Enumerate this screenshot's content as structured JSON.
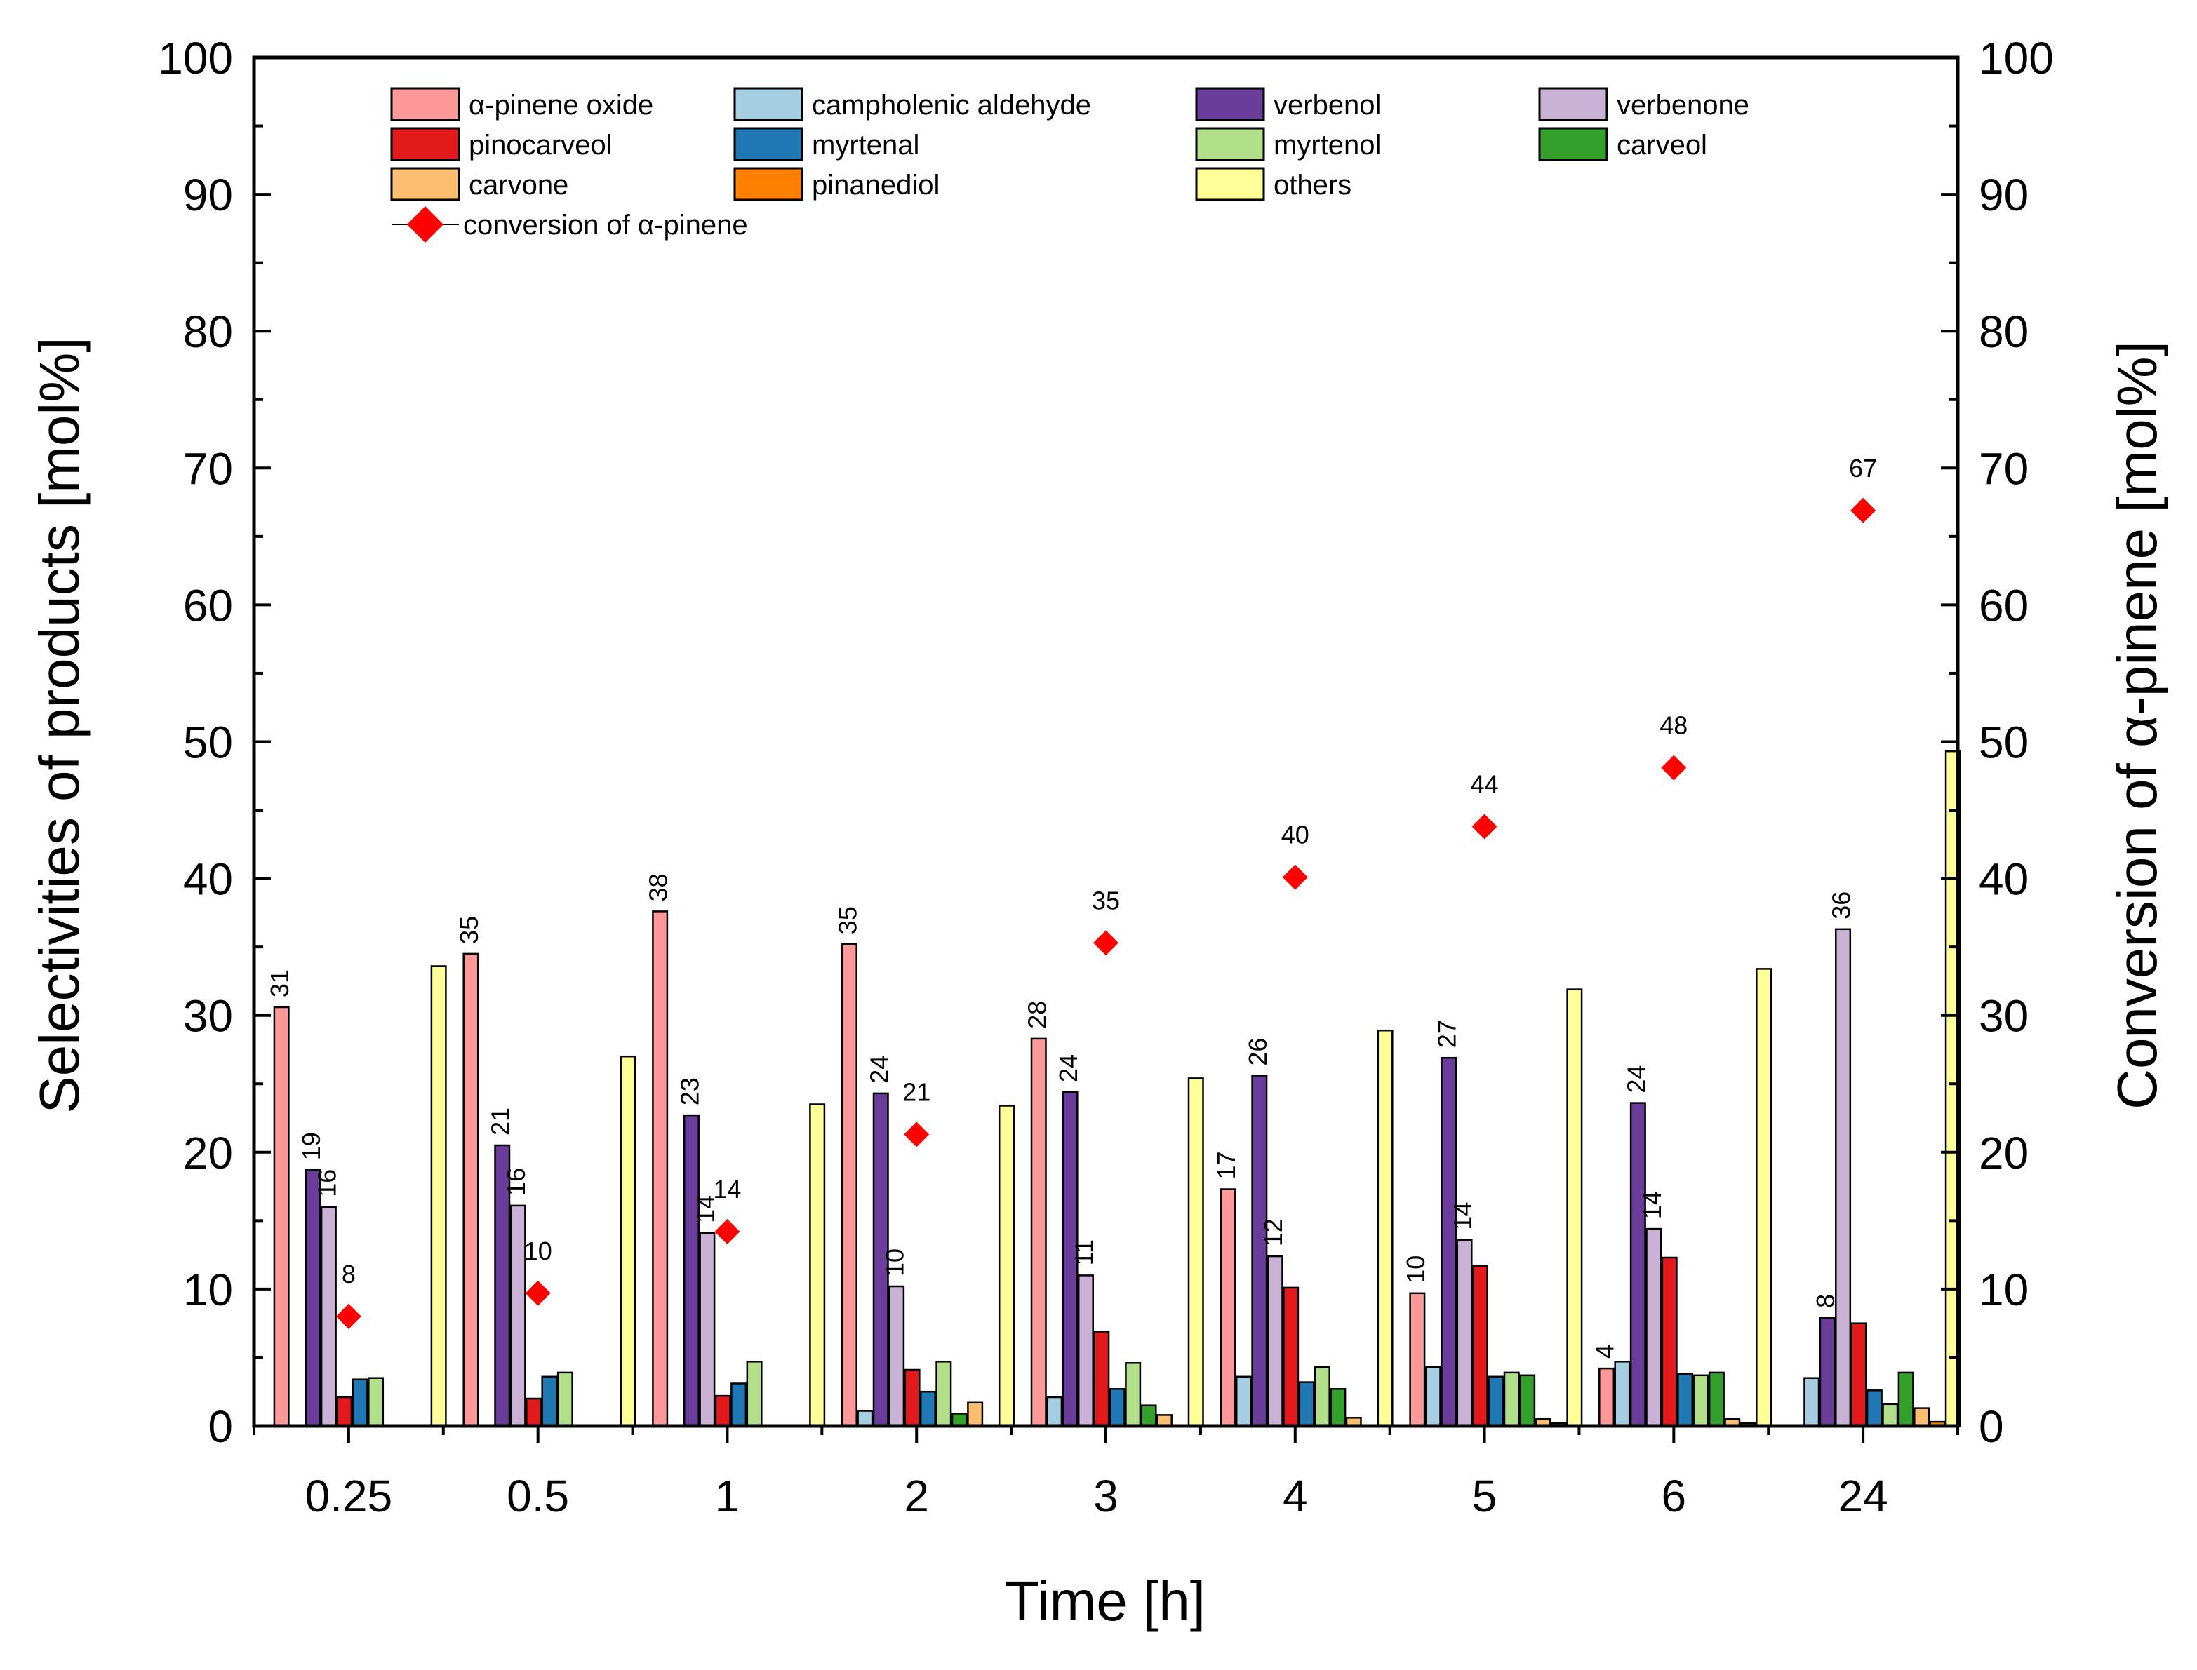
{
  "chart_data": {
    "type": "bar",
    "title": "",
    "xlabel": "Time [h]",
    "ylabel": "Selectivities of products [mol%]",
    "y2label": "Conversion of α-pinene [mol%]",
    "ylim": [
      0,
      100
    ],
    "y2lim": [
      0,
      100
    ],
    "yticks": [
      "0",
      "10",
      "20",
      "30",
      "40",
      "50",
      "60",
      "70",
      "80",
      "90",
      "100"
    ],
    "categories": [
      "0.25",
      "0.5",
      "1",
      "2",
      "3",
      "4",
      "5",
      "6",
      "24"
    ],
    "grid": false,
    "legend_position": "top",
    "series": [
      {
        "name": "α-pinene oxide",
        "color": "#FF9999",
        "values": [
          30.6,
          34.5,
          37.6,
          35.2,
          28.3,
          17.3,
          9.7,
          4.2,
          0
        ],
        "labels": [
          "31",
          "35",
          "38",
          "35",
          "28",
          "17",
          "10",
          "4",
          ""
        ]
      },
      {
        "name": "campholenic aldehyde",
        "color": "#A6CEE3",
        "values": [
          0,
          0,
          0,
          1.1,
          2.1,
          3.6,
          4.3,
          4.7,
          3.5
        ],
        "labels": [
          "",
          "",
          "",
          "",
          "",
          "",
          "",
          "",
          ""
        ]
      },
      {
        "name": "verbenol",
        "color": "#6A3D9A",
        "values": [
          18.7,
          20.5,
          22.7,
          24.3,
          24.4,
          25.6,
          26.9,
          23.6,
          7.9
        ],
        "labels": [
          "19",
          "21",
          "23",
          "24",
          "24",
          "26",
          "27",
          "24",
          "8"
        ]
      },
      {
        "name": "verbenone",
        "color": "#CAB2D6",
        "values": [
          16.0,
          16.1,
          14.1,
          10.2,
          11.0,
          12.4,
          13.6,
          14.4,
          36.3
        ],
        "labels": [
          "16",
          "16",
          "14",
          "10",
          "11",
          "12",
          "14",
          "14",
          "36"
        ]
      },
      {
        "name": "pinocarveol",
        "color": "#E31A1C",
        "values": [
          2.1,
          2.0,
          2.2,
          4.1,
          6.9,
          10.1,
          11.7,
          12.3,
          7.5
        ],
        "labels": [
          "",
          "",
          "",
          "",
          "",
          "",
          "",
          "",
          ""
        ]
      },
      {
        "name": "myrtenal",
        "color": "#1F78B4",
        "values": [
          3.4,
          3.6,
          3.1,
          2.5,
          2.7,
          3.2,
          3.6,
          3.8,
          2.6
        ],
        "labels": [
          "",
          "",
          "",
          "",
          "",
          "",
          "",
          "",
          ""
        ]
      },
      {
        "name": "myrtenol",
        "color": "#B2DF8A",
        "values": [
          3.5,
          3.9,
          4.7,
          4.7,
          4.6,
          4.3,
          3.9,
          3.7,
          1.6
        ],
        "labels": [
          "",
          "",
          "",
          "",
          "",
          "",
          "",
          "",
          ""
        ]
      },
      {
        "name": "carveol",
        "color": "#33A02C",
        "values": [
          0,
          0,
          0,
          0.9,
          1.5,
          2.7,
          3.7,
          3.9,
          3.9
        ],
        "labels": [
          "",
          "",
          "",
          "",
          "",
          "",
          "",
          "",
          ""
        ]
      },
      {
        "name": "carvone",
        "color": "#FDBF6F",
        "values": [
          0,
          0,
          0,
          1.7,
          0.8,
          0.6,
          0.5,
          0.5,
          1.3
        ],
        "labels": [
          "",
          "",
          "",
          "",
          "",
          "",
          "",
          "",
          ""
        ]
      },
      {
        "name": "pinanediol",
        "color": "#FF7F00",
        "values": [
          0,
          0,
          0,
          0,
          0,
          0,
          0.2,
          0.2,
          0.3
        ],
        "labels": [
          "",
          "",
          "",
          "",
          "",
          "",
          "",
          "",
          ""
        ]
      },
      {
        "name": "others",
        "color": "#FFFF99",
        "values": [
          33.6,
          27.0,
          23.5,
          23.4,
          25.4,
          28.9,
          31.9,
          33.4,
          49.3
        ],
        "labels": [
          "",
          "",
          "",
          "",
          "",
          "",
          "",
          "",
          ""
        ]
      }
    ],
    "conversion": {
      "name": "conversion of α-pinene",
      "color": "#FF0000",
      "values": [
        8.0,
        9.7,
        14.2,
        21.3,
        35.3,
        40.1,
        43.8,
        48.1,
        66.9
      ],
      "labels": [
        "8",
        "10",
        "14",
        "21",
        "35",
        "40",
        "44",
        "48",
        "67"
      ]
    }
  }
}
